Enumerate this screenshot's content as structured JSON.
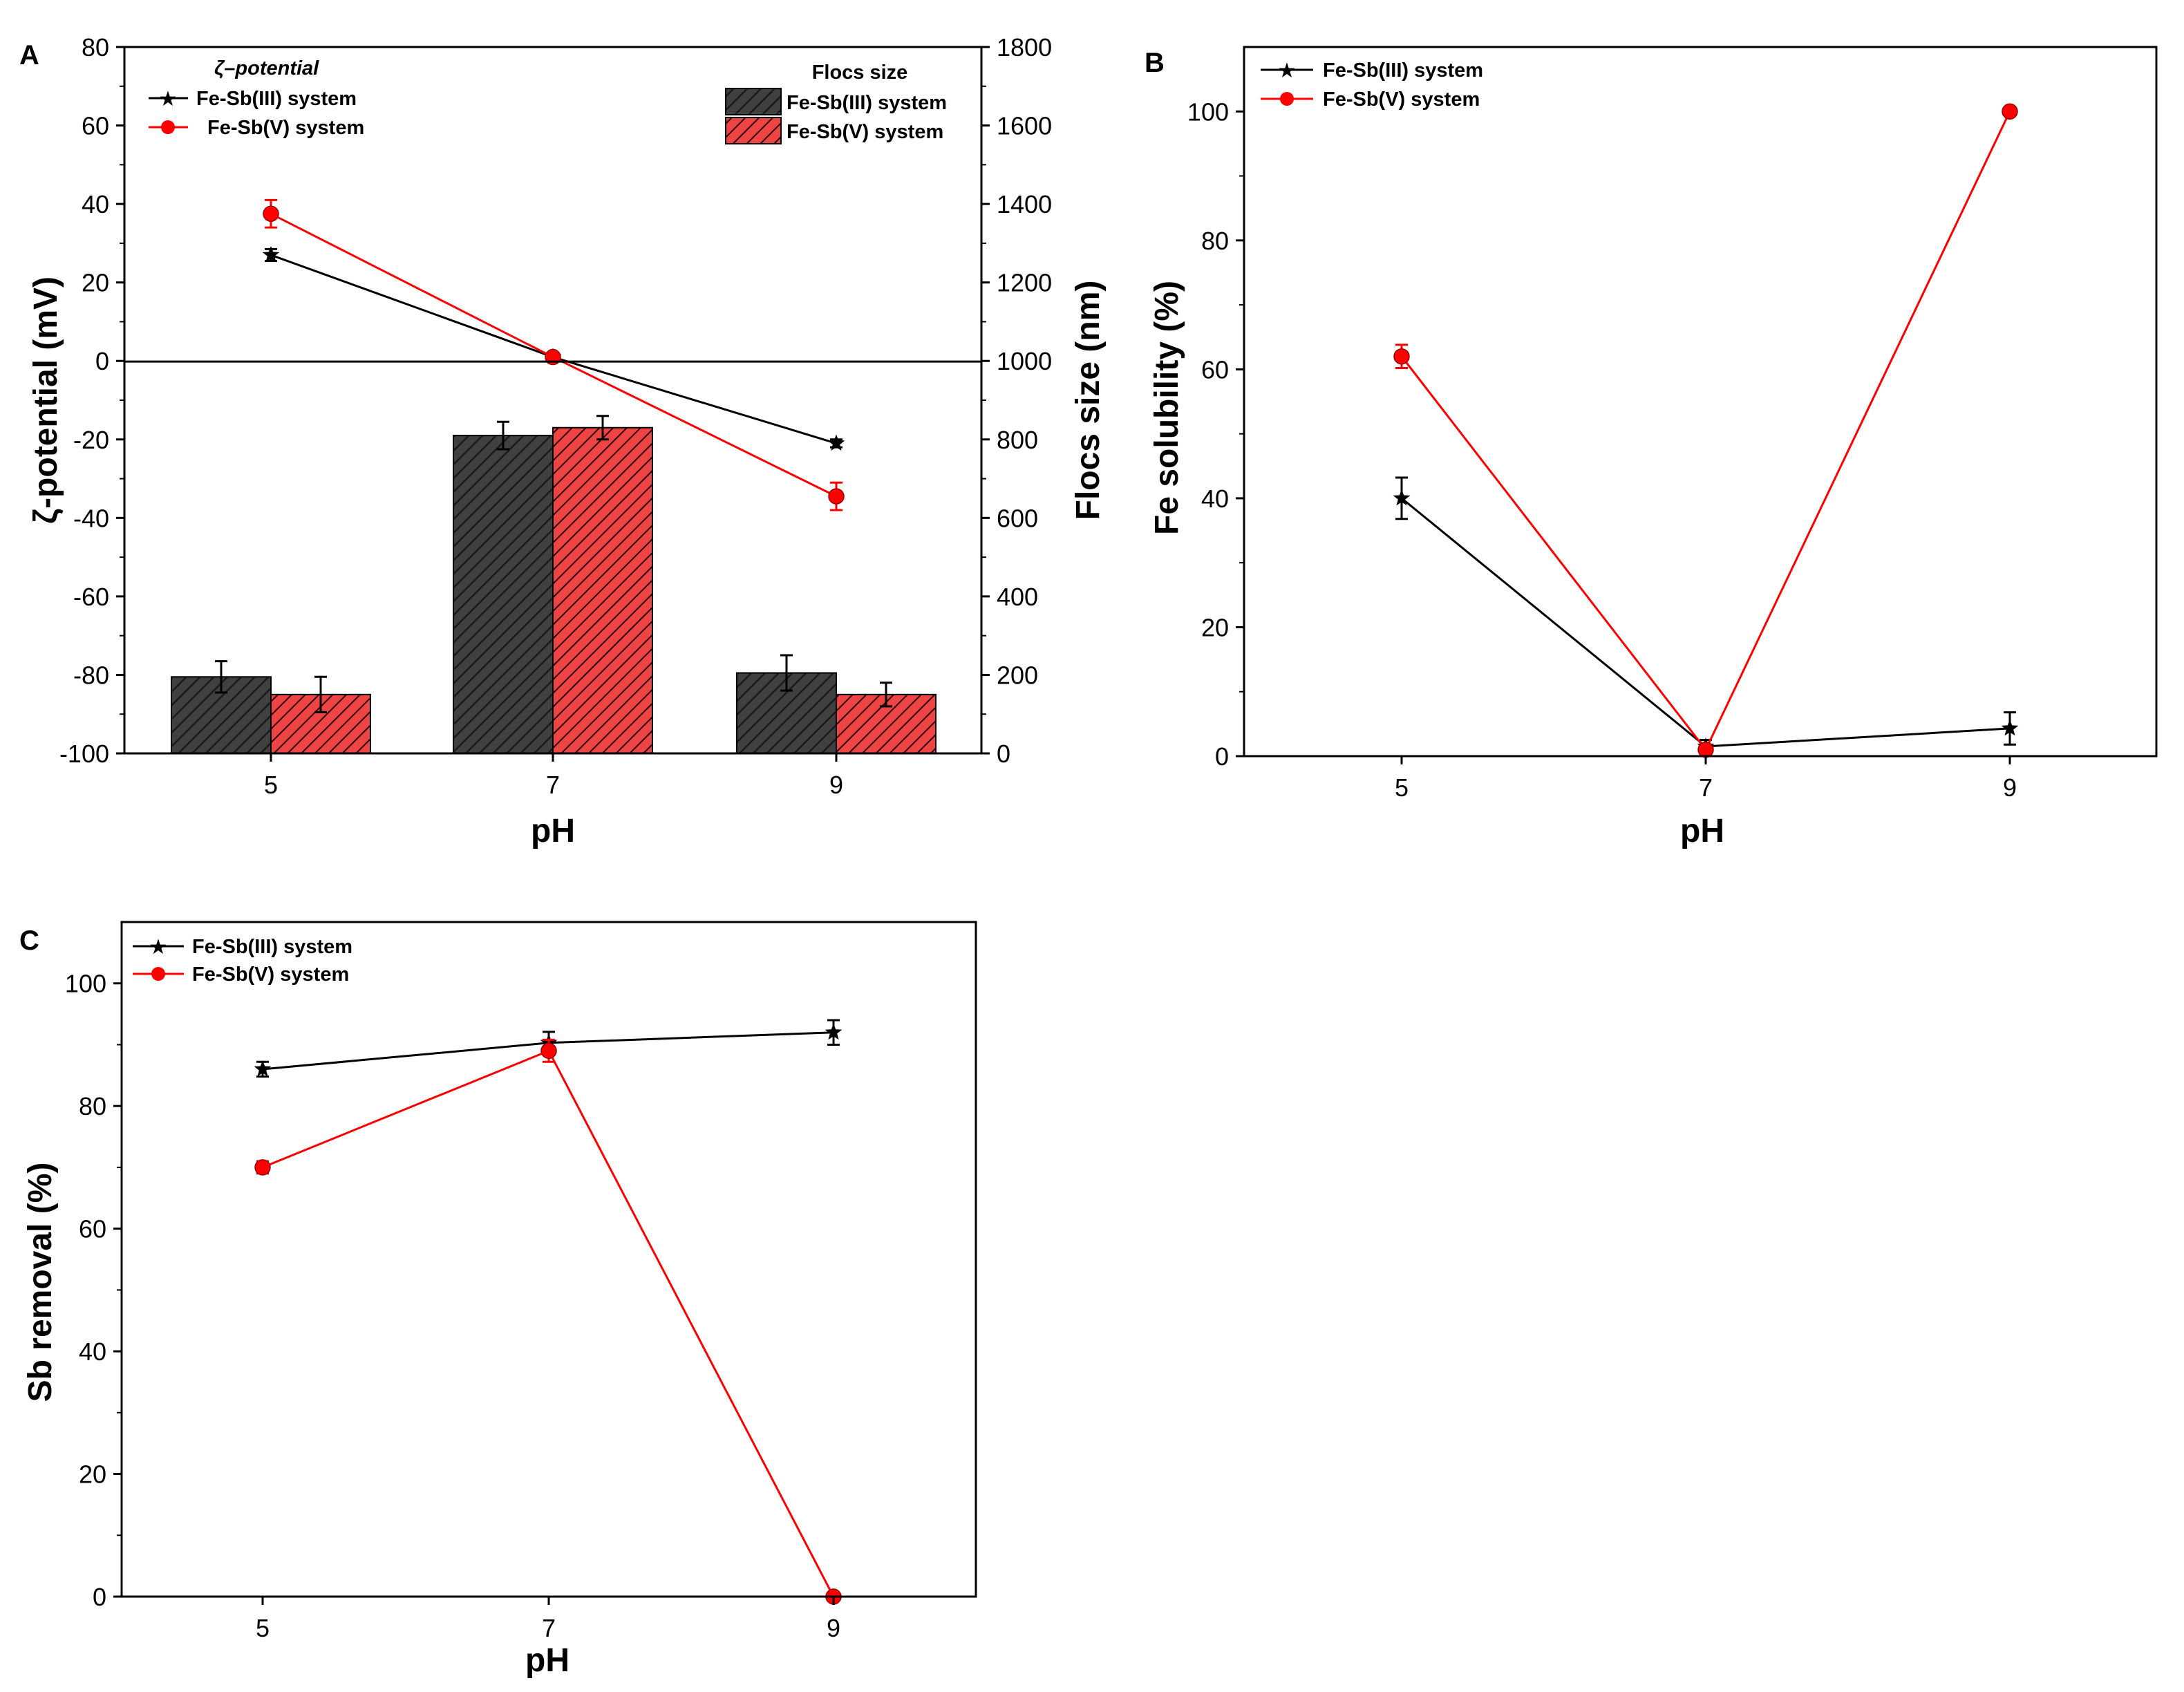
{
  "colors": {
    "black": "#000000",
    "red": "#ff0000",
    "bar_dark": "#404040",
    "bar_red": "#ee4444"
  },
  "chart_data": [
    {
      "panel": "A",
      "type": "bar",
      "x_categories": [
        "5",
        "7",
        "9"
      ],
      "xlabel": "pH",
      "ylabel_left": "ζ-potential (mV)",
      "ylabel_right": "Flocs size (nm)",
      "ylim_left": [
        -100,
        80
      ],
      "ylim_right": [
        0,
        1800
      ],
      "yticks_left": [
        "80",
        "60",
        "40",
        "20",
        "0",
        "-20",
        "-40",
        "-60",
        "-80",
        "-100"
      ],
      "yticks_right": [
        "1800",
        "1600",
        "1400",
        "1200",
        "1000",
        "800",
        "600",
        "400",
        "200",
        "0"
      ],
      "legend_lines_title": "ζ–potential",
      "legend_bars_title": "Flocs size",
      "zeta_series": [
        {
          "name": "Fe-Sb(III) system",
          "color": "#000000",
          "marker": "star",
          "values": [
            27,
            1,
            -21
          ],
          "errors": [
            1.5,
            1.0,
            1.0
          ]
        },
        {
          "name": "Fe-Sb(V) system",
          "color": "#ff0000",
          "marker": "circle",
          "values": [
            37.5,
            1,
            -34.5
          ],
          "errors": [
            3.5,
            1.0,
            3.5
          ]
        }
      ],
      "floc_series": [
        {
          "name": "Fe-Sb(III) system",
          "color": "#404040",
          "values": [
            195,
            810,
            205
          ],
          "errors": [
            40,
            35,
            45
          ]
        },
        {
          "name": "Fe-Sb(V) system",
          "color": "#ee4444",
          "values": [
            150,
            830,
            150
          ],
          "errors": [
            45,
            30,
            30
          ]
        }
      ]
    },
    {
      "panel": "B",
      "type": "line",
      "x": [
        "5",
        "7",
        "9"
      ],
      "xlabel": "pH",
      "ylabel": "Fe solubility (%)",
      "ylim": [
        0,
        110
      ],
      "yticks": [
        "0",
        "20",
        "40",
        "60",
        "80",
        "100"
      ],
      "series": [
        {
          "name": "Fe-Sb(III) system",
          "color": "#000000",
          "marker": "star",
          "values": [
            40,
            1.5,
            4.3
          ],
          "errors": [
            3.2,
            1.0,
            2.5
          ]
        },
        {
          "name": "Fe-Sb(V) system",
          "color": "#ff0000",
          "marker": "circle",
          "values": [
            62,
            1,
            100
          ],
          "errors": [
            1.8,
            0.5,
            0
          ]
        }
      ]
    },
    {
      "panel": "C",
      "type": "line",
      "x": [
        "5",
        "7",
        "9"
      ],
      "xlabel": "pH",
      "ylabel": "Sb removal (%)",
      "ylim": [
        0,
        110
      ],
      "yticks": [
        "0",
        "20",
        "40",
        "60",
        "80",
        "100"
      ],
      "series": [
        {
          "name": "Fe-Sb(III) system",
          "color": "#000000",
          "marker": "star",
          "values": [
            86,
            90.3,
            92
          ],
          "errors": [
            1.2,
            1.8,
            2.0
          ]
        },
        {
          "name": "Fe-Sb(V) system",
          "color": "#ff0000",
          "marker": "circle",
          "values": [
            70,
            89,
            0
          ],
          "errors": [
            1.0,
            1.8,
            0
          ]
        }
      ]
    }
  ]
}
